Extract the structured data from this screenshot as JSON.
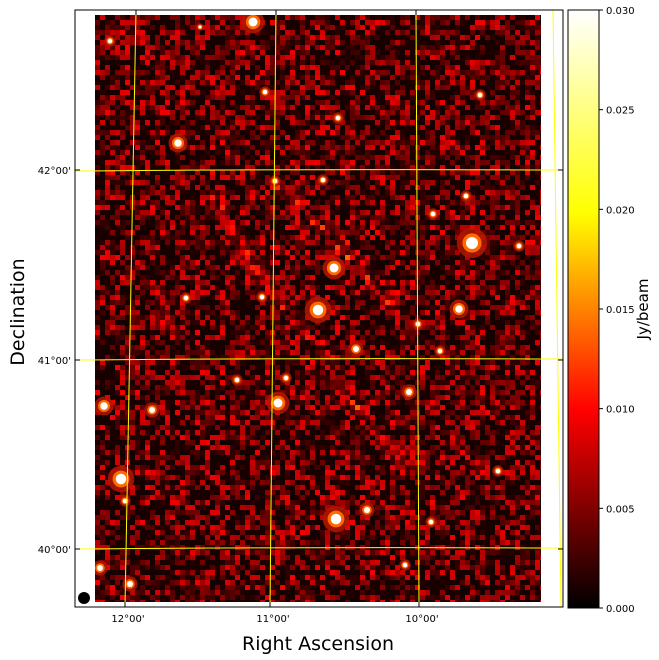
{
  "chart_data": {
    "type": "heatmap",
    "title": "",
    "xlabel": "Right Ascension",
    "ylabel": "Declination",
    "x_ticks": [
      "12°00'",
      "11°00'",
      "10°00'"
    ],
    "y_ticks": [
      "42°00'",
      "41°00'",
      "40°00'"
    ],
    "grid": true,
    "grid_color": "#ffff00",
    "colormap": "afmhot",
    "colorbar": {
      "label": "Jy/beam",
      "range": [
        0.0,
        0.03
      ],
      "ticks": [
        "0.000",
        "0.005",
        "0.010",
        "0.015",
        "0.020",
        "0.025",
        "0.030"
      ]
    },
    "beam_marker": "filled-circle-bottom-left"
  }
}
